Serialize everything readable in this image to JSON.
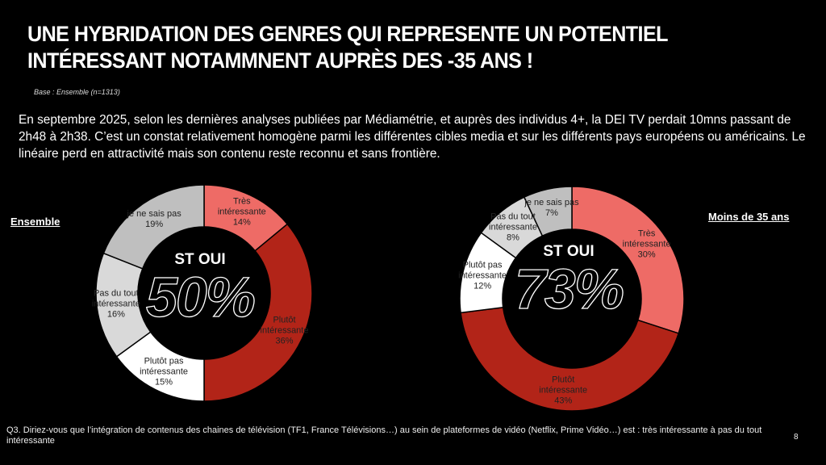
{
  "title_lines": [
    "UNE HYBRIDATION DES GENRES QUI REPRESENTE UN POTENTIEL",
    "INTÉRESSANT NOTAMMNENT AUPRÈS DES -35 ANS  !"
  ],
  "base": "Base : Ensemble  (n=1313)",
  "paragraph": "En septembre 2025, selon les dernières analyses publiées par Médiamétrie, et auprès des individus 4+, la DEI TV perdait 10mns passant de 2h48 à 2h38. C’est un constat relativement homogène parmi les différentes cibles media et sur les différents pays européens ou américains. Le linéaire perd en attractivité mais son contenu reste reconnu et sans frontière.",
  "footer": "Q3. Diriez-vous que l’intégration de contenus des chaines de télévision (TF1, France Télévisions…) au sein de plateformes de vidéo (Netflix, Prime Vidéo…) est : très intéressante à pas du tout intéressante",
  "page_number": "8",
  "chart_data": [
    {
      "type": "pie",
      "variant": "donut",
      "title": "Ensemble",
      "center_label": "ST OUI",
      "center_value": "50%",
      "categories": [
        "Très intéressante",
        "Plutôt intéressante",
        "Plutôt pas intéressante",
        "Pas du tout intéressante",
        "je ne sais pas"
      ],
      "label_lines": [
        [
          "Très",
          "intéressante"
        ],
        [
          "Plutôt",
          "intéressante"
        ],
        [
          "Plutôt pas",
          "intéressante"
        ],
        [
          "Pas du tout",
          "intéressante"
        ],
        [
          "je ne sais pas"
        ]
      ],
      "values": [
        14,
        36,
        15,
        16,
        19
      ],
      "colors": [
        "#EE6B66",
        "#B22418",
        "#FFFFFF",
        "#D9D9D9",
        "#BFBFBF"
      ]
    },
    {
      "type": "pie",
      "variant": "donut",
      "title": "Moins de 35 ans",
      "center_label": "ST OUI",
      "center_value": "73%",
      "categories": [
        "Très intéressante",
        "Plutôt intéressante",
        "Plutôt pas intéressante",
        "Pas du tout intéressante",
        "je ne sais pas"
      ],
      "label_lines": [
        [
          "Très",
          "intéressante"
        ],
        [
          "Plutôt",
          "intéressante"
        ],
        [
          "Plutôt pas",
          "intéressante"
        ],
        [
          "Pas du tout",
          "intéressante"
        ],
        [
          "je ne sais pas"
        ]
      ],
      "values": [
        30,
        43,
        12,
        8,
        7
      ],
      "colors": [
        "#EE6B66",
        "#B22418",
        "#FFFFFF",
        "#D9D9D9",
        "#BFBFBF"
      ]
    }
  ]
}
